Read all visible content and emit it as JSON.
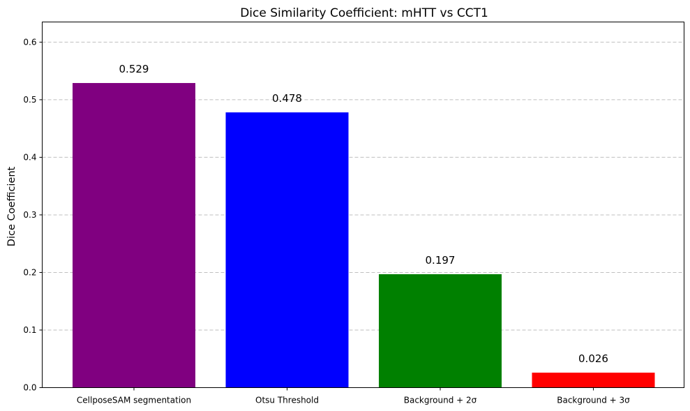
{
  "chart_data": {
    "type": "bar",
    "title": "Dice Similarity Coefficient: mHTT vs CCT1",
    "xlabel": "",
    "ylabel": "Dice Coefficient",
    "categories": [
      "CellposeSAM segmentation",
      "Otsu Threshold",
      "Background + 2σ",
      "Background + 3σ"
    ],
    "values": [
      0.529,
      0.478,
      0.197,
      0.026
    ],
    "data_labels": [
      "0.529",
      "0.478",
      "0.197",
      "0.026"
    ],
    "colors": [
      "#800080",
      "#0000ff",
      "#008000",
      "#ff0000"
    ],
    "ylim": [
      0,
      0.635
    ],
    "yticks": [
      0.0,
      0.1,
      0.2,
      0.3,
      0.4,
      0.5,
      0.6
    ],
    "ytick_labels": [
      "0.0",
      "0.1",
      "0.2",
      "0.3",
      "0.4",
      "0.5",
      "0.6"
    ],
    "grid": "y-dashed",
    "legend": "none"
  }
}
